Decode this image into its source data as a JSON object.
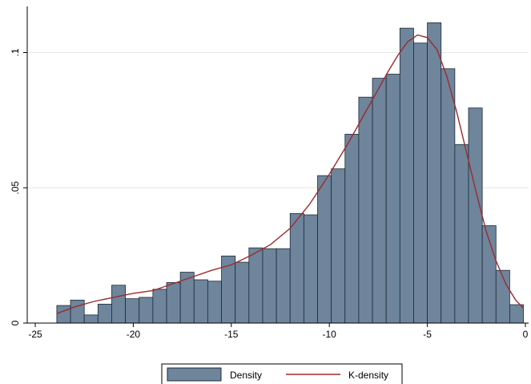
{
  "chart_data": {
    "type": "bar",
    "title": "",
    "xlabel": "",
    "ylabel": "",
    "xlim": [
      -25,
      0
    ],
    "ylim": [
      0,
      0.112
    ],
    "x_ticks": [
      -25,
      -20,
      -15,
      -10,
      -5,
      0
    ],
    "x_tick_labels": [
      "-25",
      "-20",
      "-15",
      "-10",
      "-5",
      "0"
    ],
    "y_ticks": [
      0,
      0.05,
      0.1
    ],
    "y_tick_labels": [
      "0",
      ".05",
      ".1"
    ],
    "grid": "horizontal",
    "legend_position": "bottom",
    "bin_width": 0.7,
    "series": [
      {
        "name": "Density",
        "type": "bar",
        "color": "#6e859c",
        "edge_color": "#1d2a38",
        "bin_starts": [
          -23.9,
          -23.2,
          -22.5,
          -21.8,
          -21.1,
          -20.4,
          -19.7,
          -19.0,
          -18.3,
          -17.6,
          -16.9,
          -16.2,
          -15.5,
          -14.8,
          -14.1,
          -13.4,
          -12.7,
          -12.0,
          -11.3,
          -10.6,
          -9.9,
          -9.2,
          -8.5,
          -7.8,
          -7.1,
          -6.4,
          -5.7,
          -5.0,
          -4.3,
          -3.6,
          -2.9,
          -2.2,
          -1.5,
          -0.8
        ],
        "values": [
          0.0065,
          0.0085,
          0.003,
          0.007,
          0.014,
          0.009,
          0.0095,
          0.0125,
          0.015,
          0.0188,
          0.016,
          0.0155,
          0.0248,
          0.0225,
          0.0278,
          0.0275,
          0.0275,
          0.0405,
          0.04,
          0.0545,
          0.057,
          0.0698,
          0.0835,
          0.0905,
          0.092,
          0.109,
          0.1035,
          0.111,
          0.094,
          0.066,
          0.0795,
          0.036,
          0.0195,
          0.0068
        ]
      },
      {
        "name": "K-density",
        "type": "line",
        "color": "#9e2a2b",
        "x": [
          -23.9,
          -23,
          -22,
          -21,
          -20,
          -19,
          -18,
          -17,
          -16,
          -15,
          -14,
          -13,
          -12,
          -11,
          -10,
          -9,
          -8,
          -7,
          -6.5,
          -6,
          -5.5,
          -5,
          -4.5,
          -4,
          -3.5,
          -3,
          -2.5,
          -2,
          -1.5,
          -1,
          -0.5,
          -0.1
        ],
        "y": [
          0.0035,
          0.006,
          0.008,
          0.0095,
          0.011,
          0.012,
          0.0145,
          0.017,
          0.0195,
          0.0215,
          0.025,
          0.029,
          0.035,
          0.044,
          0.055,
          0.067,
          0.08,
          0.093,
          0.099,
          0.104,
          0.1065,
          0.1055,
          0.101,
          0.091,
          0.078,
          0.063,
          0.048,
          0.034,
          0.023,
          0.0145,
          0.0085,
          0.0055
        ]
      }
    ]
  }
}
